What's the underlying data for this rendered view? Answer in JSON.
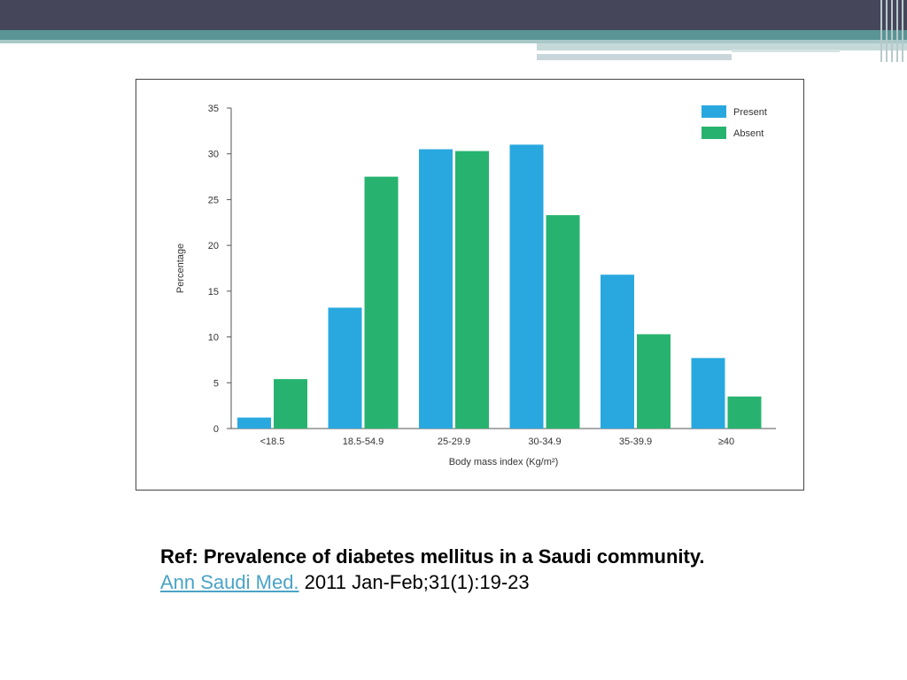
{
  "chart_data": {
    "type": "bar",
    "title": "",
    "xlabel": "Body mass index (Kg/m²)",
    "ylabel": "Percentage",
    "ylim": [
      0,
      35
    ],
    "yticks": [
      0,
      5,
      10,
      15,
      20,
      25,
      30,
      35
    ],
    "categories": [
      "<18.5",
      "18.5-54.9",
      "25-29.9",
      "30-34.9",
      "35-39.9",
      "≥40"
    ],
    "series": [
      {
        "name": "Present",
        "color": "#29a8df",
        "values": [
          1.2,
          13.2,
          30.5,
          31.0,
          16.8,
          7.7
        ]
      },
      {
        "name": "Absent",
        "color": "#27b36f",
        "values": [
          5.4,
          27.5,
          30.3,
          23.3,
          10.3,
          3.5
        ]
      }
    ],
    "legend_position": "top-right",
    "grid": false
  },
  "reference": {
    "title": "Ref: Prevalence of diabetes mellitus in a Saudi community.",
    "journal_link": "Ann Saudi Med.",
    "citation": " 2011 Jan-Feb;31(1):19-23"
  }
}
